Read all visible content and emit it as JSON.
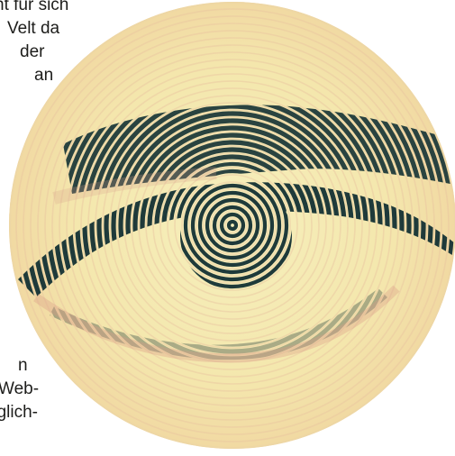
{
  "page": {
    "background": "#ffffff"
  },
  "artwork": {
    "subject": "eye-icon",
    "disc_color": "#f5ecb0",
    "ink_color": "#1f3a3a",
    "ring_color": "#e7b89a"
  },
  "text_top": [
    "nt für sich",
    "Velt da",
    "der",
    "an"
  ],
  "text_bottom": [
    "n",
    "Web-",
    "öglich-"
  ]
}
